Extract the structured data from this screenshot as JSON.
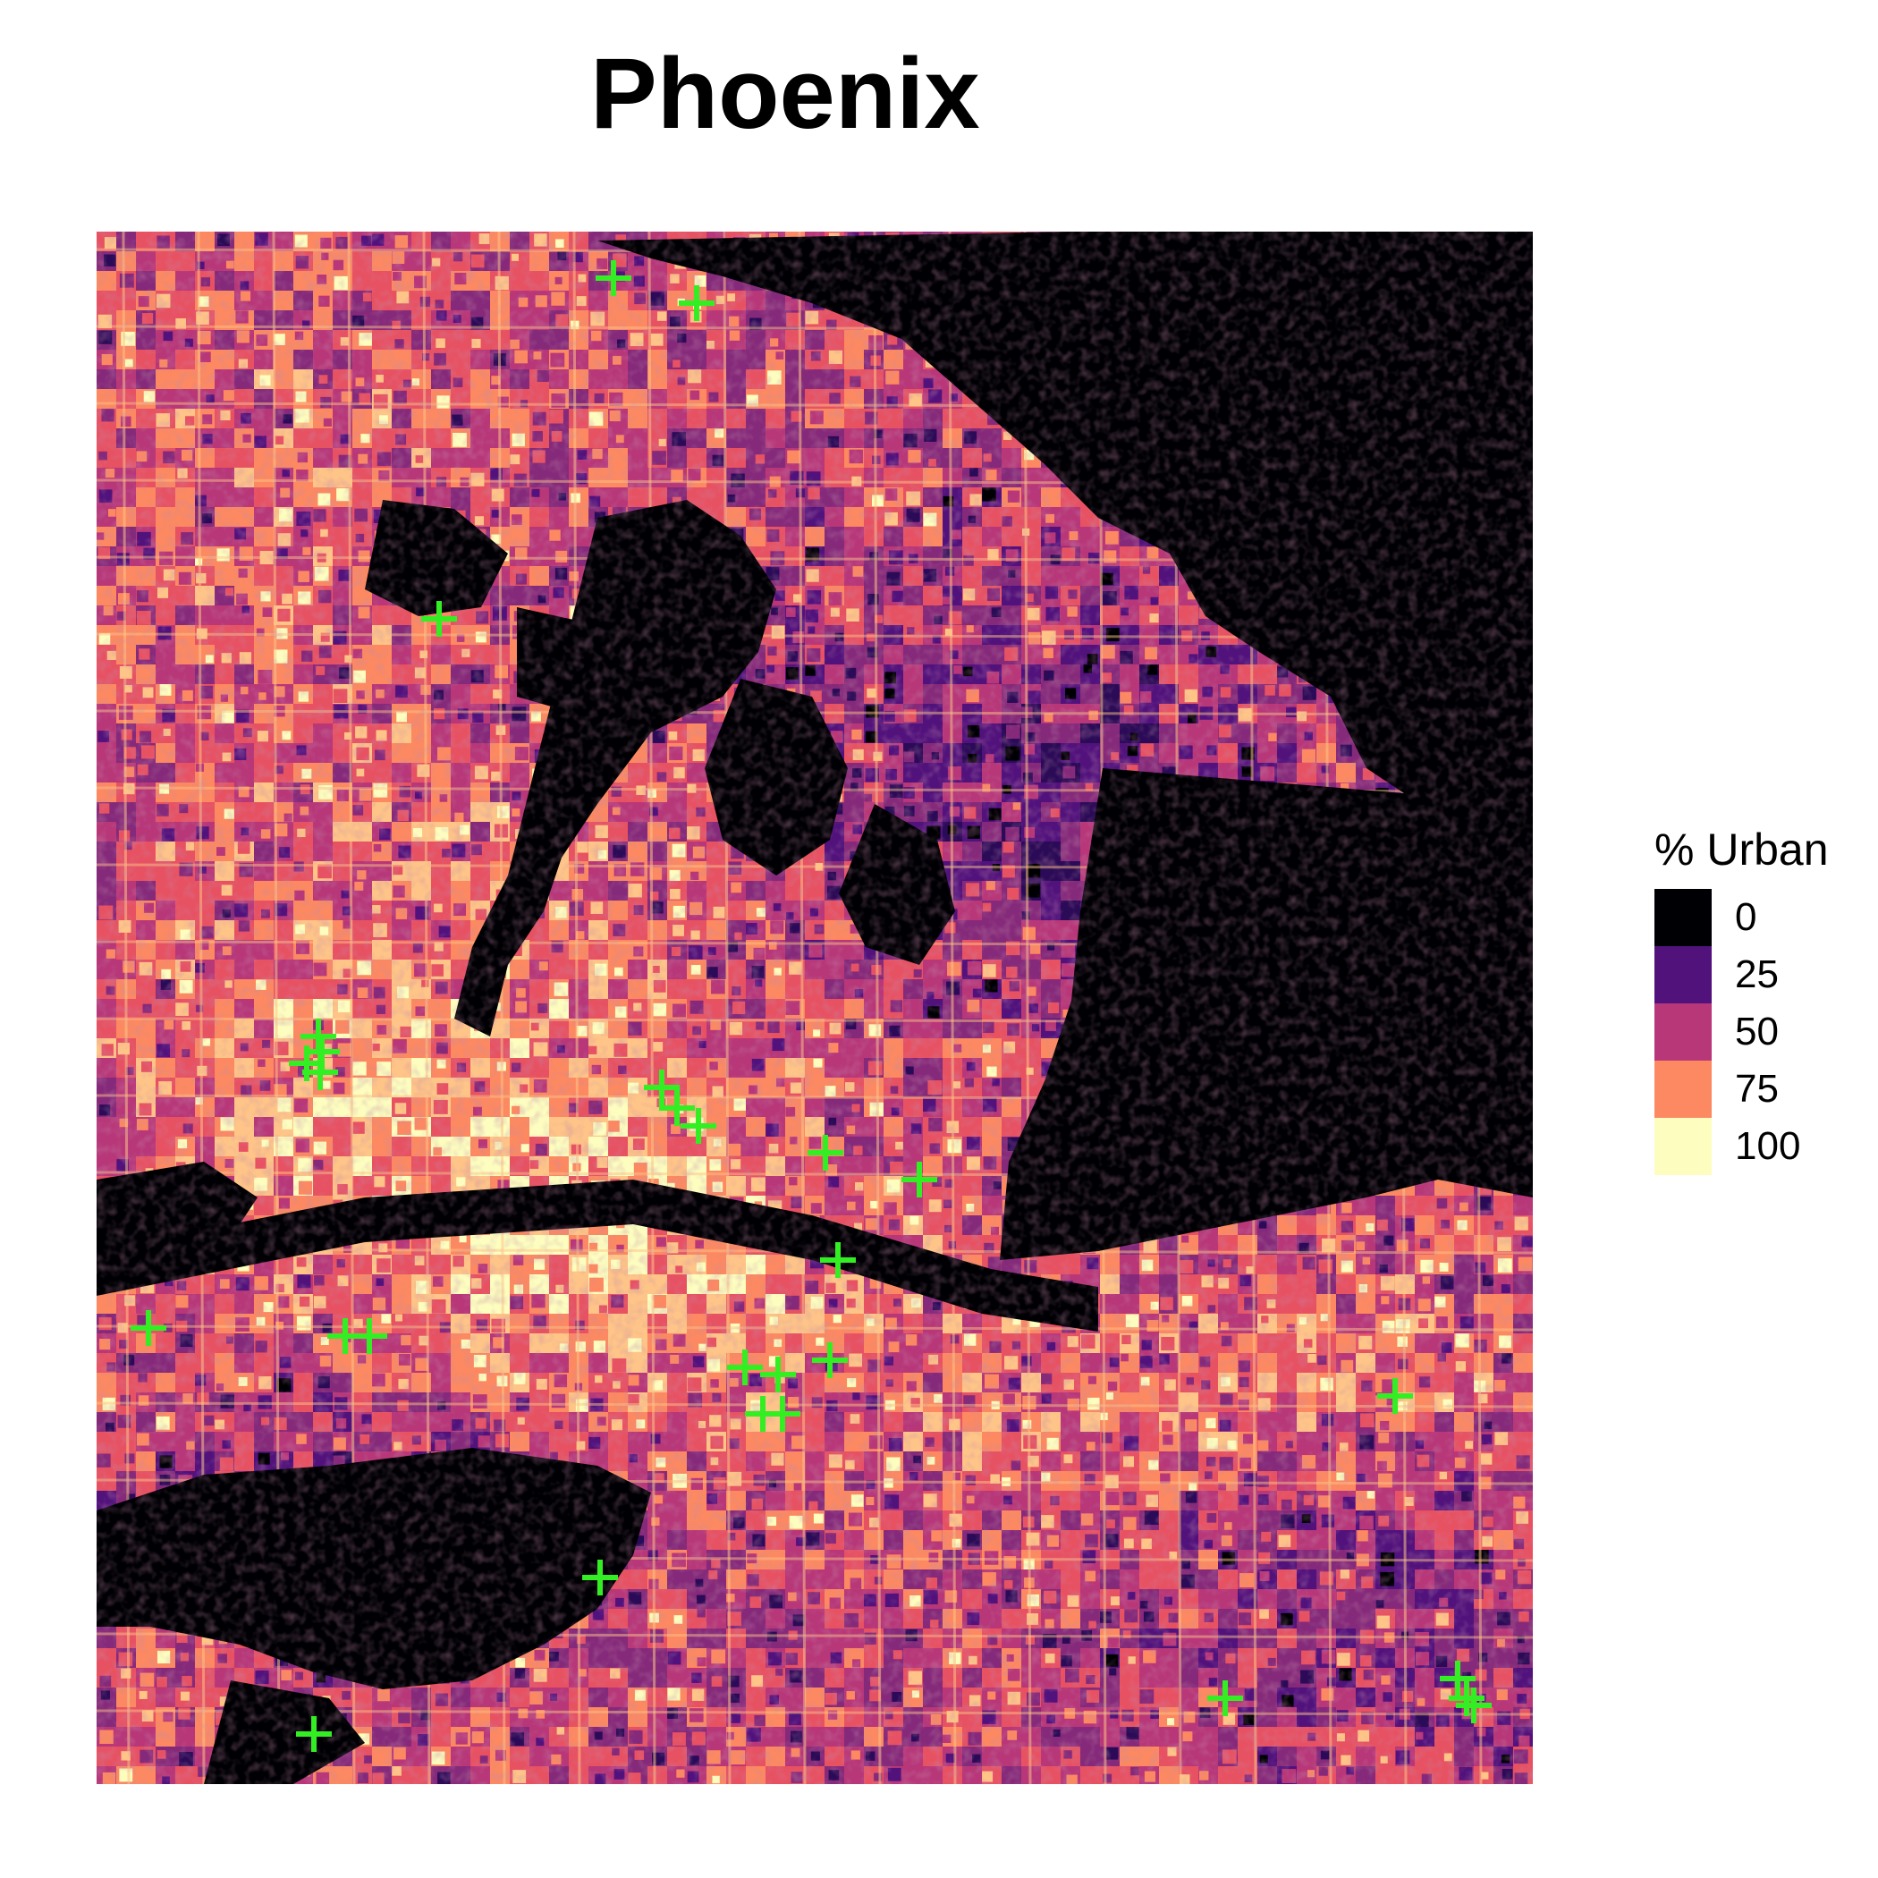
{
  "title": "Phoenix",
  "legend": {
    "title": "% Urban",
    "entries": [
      {
        "label": "0",
        "color": "#000004"
      },
      {
        "label": "25",
        "color": "#51127c"
      },
      {
        "label": "50",
        "color": "#b73779"
      },
      {
        "label": "75",
        "color": "#fc8961"
      },
      {
        "label": "100",
        "color": "#fcfdbf"
      }
    ]
  },
  "map": {
    "palette": [
      "#000004",
      "#2b0b57",
      "#51127c",
      "#852a7a",
      "#b73779",
      "#e75263",
      "#fc8961",
      "#fec488",
      "#fcfdbf"
    ],
    "marker_color": "#33ee22",
    "marker_symbol": "cross"
  }
}
